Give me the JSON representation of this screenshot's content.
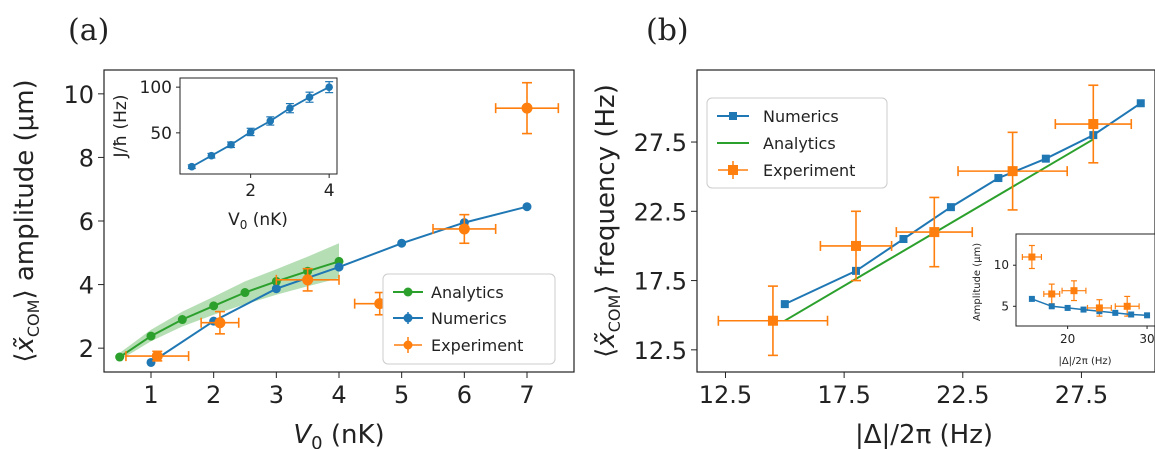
{
  "chart_data": [
    {
      "panel": "(a)",
      "type": "line",
      "xlabel": "V_0 (nK)",
      "ylabel": "⟨x̃_COM⟩ amplitude (μm)",
      "xlim": [
        0.25,
        7.75
      ],
      "ylim": [
        1.25,
        10.75
      ],
      "xticks": [
        1,
        2,
        3,
        4,
        5,
        6,
        7
      ],
      "yticks": [
        2,
        4,
        6,
        8,
        10
      ],
      "legend_position": "lower-right",
      "colors": {
        "analytics": "#2ca02c",
        "numerics": "#1f77b4",
        "experiment": "#ff7f0e"
      },
      "series": [
        {
          "name": "Analytics",
          "type": "line",
          "color": "#2ca02c",
          "x": [
            0.5,
            1.0,
            1.5,
            2.0,
            2.5,
            3.0,
            3.5,
            4.0
          ],
          "y": [
            1.72,
            2.38,
            2.9,
            3.33,
            3.75,
            4.1,
            4.42,
            4.73
          ],
          "band_lower": [
            1.62,
            2.22,
            2.68,
            3.05,
            3.38,
            3.68,
            3.95,
            4.2
          ],
          "band_upper": [
            1.85,
            2.58,
            3.15,
            3.62,
            4.1,
            4.48,
            4.88,
            5.3
          ]
        },
        {
          "name": "Numerics",
          "type": "line",
          "color": "#1f77b4",
          "x": [
            1,
            2,
            3,
            4,
            5,
            6,
            7
          ],
          "y": [
            1.55,
            2.85,
            3.87,
            4.55,
            5.3,
            5.95,
            6.45
          ],
          "yerr": [
            0.05,
            0.05,
            0.05,
            0.05,
            0.05,
            0.05,
            0.05
          ]
        },
        {
          "name": "Experiment",
          "type": "errorbar",
          "color": "#ff7f0e",
          "x": [
            1.1,
            2.1,
            3.5,
            4.65,
            6.0,
            7.0
          ],
          "y": [
            1.75,
            2.8,
            4.15,
            3.4,
            5.75,
            9.55
          ],
          "xerr": [
            0.5,
            0.3,
            0.5,
            0.4,
            0.5,
            0.5
          ],
          "yerr": [
            0.15,
            0.35,
            0.35,
            0.35,
            0.45,
            0.8
          ]
        }
      ],
      "inset": {
        "type": "line",
        "xlabel": "V_0 (nK)",
        "ylabel": "J/ħ (Hz)",
        "xlim": [
          0.2,
          4.2
        ],
        "ylim": [
          5,
          110
        ],
        "xticks": [
          2,
          4
        ],
        "yticks": [
          50,
          100
        ],
        "series": [
          {
            "name": "",
            "color": "#1f77b4",
            "x": [
              0.5,
              1.0,
              1.5,
              2.0,
              2.5,
              3.0,
              3.5,
              4.0
            ],
            "y": [
              13,
              25,
              37,
              51,
              63,
              77,
              89,
              100
            ],
            "yerr": [
              2,
              2.5,
              3,
              4,
              4.5,
              5,
              5.5,
              6
            ]
          }
        ]
      }
    },
    {
      "panel": "(b)",
      "type": "line",
      "xlabel": "|Δ|/2π (Hz)",
      "ylabel": "⟨x̃_COM⟩ frequency (Hz)",
      "xlim": [
        11.3,
        30.6
      ],
      "ylim": [
        10.9,
        32.7
      ],
      "xticks": [
        12.5,
        17.5,
        22.5,
        27.5
      ],
      "yticks": [
        12.5,
        17.5,
        22.5,
        27.5
      ],
      "legend_position": "top-left",
      "colors": {
        "numerics": "#1f77b4",
        "analytics": "#2ca02c",
        "experiment": "#ff7f0e"
      },
      "series": [
        {
          "name": "Numerics",
          "type": "line",
          "color": "#1f77b4",
          "x": [
            15.0,
            18.0,
            20.0,
            22.0,
            24.0,
            26.0,
            28.0,
            30.0
          ],
          "y": [
            15.8,
            18.2,
            20.5,
            22.8,
            24.9,
            26.3,
            28.0,
            30.3
          ]
        },
        {
          "name": "Analytics",
          "type": "line",
          "color": "#2ca02c",
          "x": [
            15.0,
            28.0
          ],
          "y": [
            14.6,
            27.7
          ]
        },
        {
          "name": "Experiment",
          "type": "errorbar",
          "color": "#ff7f0e",
          "x": [
            14.5,
            18.0,
            21.3,
            24.6,
            28.0
          ],
          "y": [
            14.6,
            20.0,
            21.0,
            25.4,
            28.8
          ],
          "xerr": [
            2.3,
            1.5,
            1.6,
            2.3,
            1.6
          ],
          "yerr": [
            2.5,
            2.5,
            2.5,
            2.8,
            2.8
          ]
        }
      ],
      "inset": {
        "type": "line",
        "xlabel": "|Δ|/2π (Hz)",
        "ylabel": "Amplitude (μm)",
        "xlim": [
          13.5,
          31
        ],
        "ylim": [
          2.6,
          13.8
        ],
        "xticks": [
          20,
          30
        ],
        "yticks": [
          5,
          10
        ],
        "series": [
          {
            "name": "",
            "color": "#1f77b4",
            "x": [
              15.5,
              18.0,
              20.0,
              22.0,
              24.0,
              26.0,
              28.0,
              30.0
            ],
            "y": [
              5.9,
              5.0,
              4.8,
              4.6,
              4.4,
              4.2,
              4.0,
              3.9
            ]
          },
          {
            "name": "",
            "color": "#ff7f0e",
            "x": [
              15.5,
              18.0,
              20.8,
              24.0,
              27.5
            ],
            "y": [
              11.0,
              6.5,
              6.9,
              4.8,
              5.0
            ],
            "xerr": [
              1.2,
              1.0,
              1.5,
              1.5,
              1.5
            ],
            "yerr": [
              1.4,
              1.2,
              1.2,
              1.0,
              1.2
            ]
          }
        ]
      }
    }
  ]
}
